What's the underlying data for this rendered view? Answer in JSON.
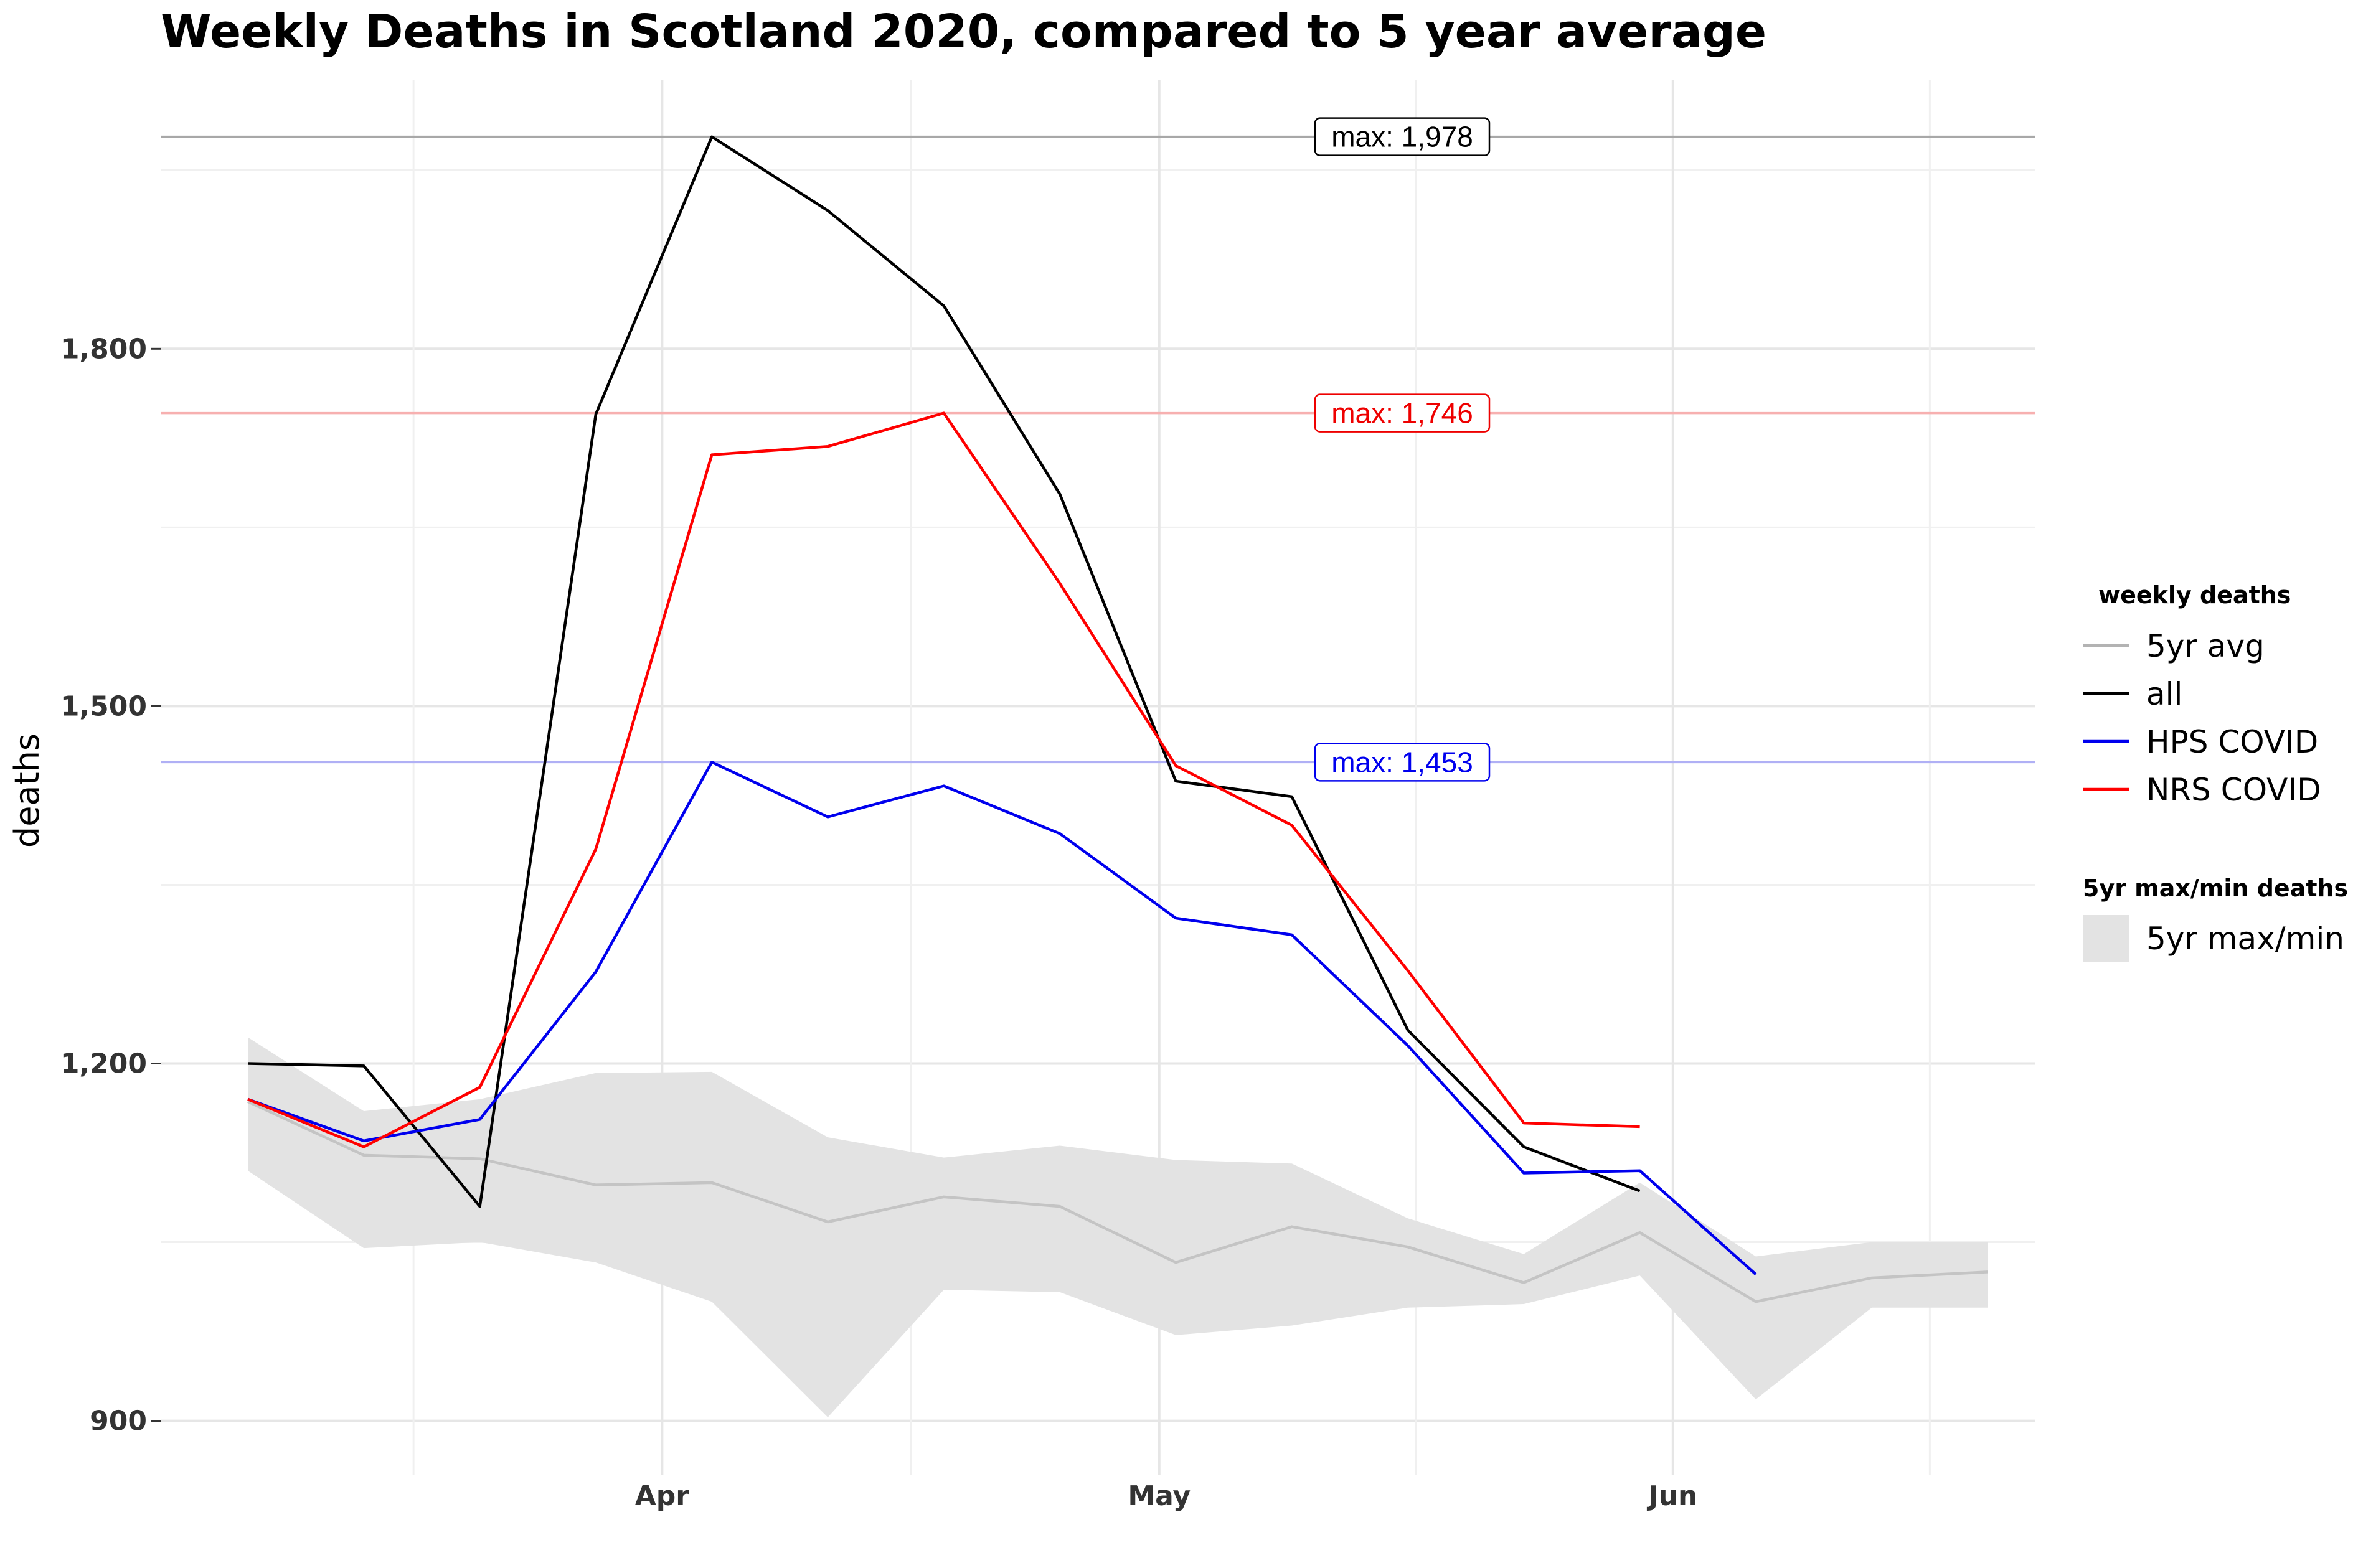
{
  "chart_data": {
    "type": "line",
    "title": "Weekly Deaths in Scotland 2020, compared to 5 year average",
    "xlabel": "",
    "ylabel": "deaths",
    "ylim": [
      870,
      2005
    ],
    "yticks": [
      900,
      1200,
      1500,
      1800
    ],
    "ytick_labels": [
      "900",
      "1,200",
      "1,500",
      "1,800"
    ],
    "x": [
      "Mar 6",
      "Mar 13",
      "Mar 20",
      "Mar 27",
      "Apr 3",
      "Apr 10",
      "Apr 17",
      "Apr 24",
      "May 1",
      "May 8",
      "May 15",
      "May 22",
      "May 29",
      "Jun 5",
      "Jun 12",
      "Jun 19"
    ],
    "xticks": [
      {
        "label": "Apr",
        "value": "Apr 1"
      },
      {
        "label": "May",
        "value": "May 1"
      },
      {
        "label": "Jun",
        "value": "Jun 1"
      }
    ],
    "band": {
      "name": "5yr max/min",
      "color": "#e3e3e3",
      "upper": [
        1222,
        1160,
        1170,
        1192,
        1193,
        1138,
        1121,
        1131,
        1119,
        1116,
        1070,
        1040,
        1100,
        1038,
        1050,
        1050
      ],
      "lower": [
        1110,
        1045,
        1050,
        1033,
        1000,
        903,
        1010,
        1008,
        972,
        980,
        995,
        998,
        1022,
        918,
        995,
        995
      ]
    },
    "series": [
      {
        "name": "5yr avg",
        "color": "#c4c4c4",
        "values": [
          1168,
          1123,
          1120,
          1098,
          1100,
          1067,
          1088,
          1080,
          1033,
          1063,
          1046,
          1016,
          1058,
          1000,
          1020,
          1025
        ]
      },
      {
        "name": "all",
        "color": "#000000",
        "values": [
          1200,
          1198,
          1080,
          1745,
          1978,
          1916,
          1836,
          1678,
          1437,
          1424,
          1228,
          1130,
          1093,
          null,
          null,
          null
        ]
      },
      {
        "name": "HPS COVID",
        "color": "#0000ee",
        "values": [
          1170,
          1135,
          1153,
          1277,
          1453,
          1407,
          1433,
          1393,
          1322,
          1308,
          1215,
          1108,
          1110,
          1023,
          null,
          null
        ]
      },
      {
        "name": "NRS COVID",
        "color": "#ff0000",
        "values": [
          1170,
          1130,
          1180,
          1380,
          1711,
          1718,
          1746,
          1603,
          1450,
          1400,
          1278,
          1150,
          1147,
          null,
          null,
          null
        ]
      }
    ],
    "annotations": [
      {
        "text": "max: 1,978",
        "value": 1978,
        "color": "#000000",
        "line_color": "#a8a8a8"
      },
      {
        "text": "max: 1,746",
        "value": 1746,
        "color": "#ee0000",
        "line_color": "#f7b0b0"
      },
      {
        "text": "max: 1,453",
        "value": 1453,
        "color": "#0000ee",
        "line_color": "#b0b0f5"
      }
    ],
    "legend": {
      "position": "right",
      "lines_title": "weekly deaths",
      "lines": [
        {
          "label": "5yr avg",
          "color": "#b3b3b3"
        },
        {
          "label": "all",
          "color": "#000000"
        },
        {
          "label": "HPS COVID",
          "color": "#0000ee"
        },
        {
          "label": "NRS COVID",
          "color": "#ff0000"
        }
      ],
      "fill_title": "5yr max/min deaths",
      "fill": {
        "label": "5yr max/min",
        "color": "#e3e3e3"
      }
    },
    "grid": true
  }
}
